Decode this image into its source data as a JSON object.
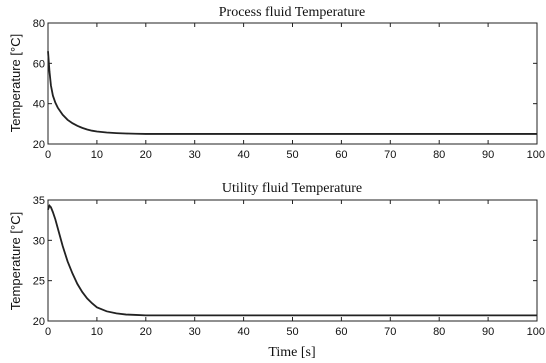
{
  "chart_data": [
    {
      "type": "line",
      "title": "Process fluid Temperature",
      "xlabel": "",
      "ylabel": "Temperature [°C]",
      "xlim": [
        0,
        100
      ],
      "ylim": [
        20,
        80
      ],
      "xticks": [
        "0",
        "10",
        "20",
        "30",
        "40",
        "50",
        "60",
        "70",
        "80",
        "90",
        "100"
      ],
      "yticks": [
        "20",
        "40",
        "60",
        "80"
      ],
      "grid": false,
      "series": [
        {
          "x": [
            0,
            0.3,
            0.6,
            1,
            1.5,
            2,
            3,
            4,
            5,
            6,
            7,
            8,
            9,
            10,
            12,
            14,
            16,
            18,
            20,
            30,
            40,
            50,
            60,
            70,
            80,
            90,
            100
          ],
          "values": [
            66,
            56,
            49,
            44,
            40.5,
            38,
            34.5,
            32,
            30.3,
            29,
            28,
            27.2,
            26.6,
            26.2,
            25.7,
            25.4,
            25.2,
            25.1,
            25,
            25,
            25,
            25,
            25,
            25,
            25,
            25,
            25
          ]
        }
      ]
    },
    {
      "type": "line",
      "title": "Utility fluid Temperature",
      "xlabel": "Time [s]",
      "ylabel": "Temperature [°C]",
      "xlim": [
        0,
        100
      ],
      "ylim": [
        20,
        35
      ],
      "xticks": [
        "0",
        "10",
        "20",
        "30",
        "40",
        "50",
        "60",
        "70",
        "80",
        "90",
        "100"
      ],
      "yticks": [
        "20",
        "25",
        "30",
        "35"
      ],
      "grid": false,
      "series": [
        {
          "x": [
            0,
            0.3,
            0.6,
            1,
            1.5,
            2,
            3,
            4,
            5,
            6,
            7,
            8,
            9,
            10,
            12,
            14,
            16,
            18,
            20,
            22,
            30,
            40,
            50,
            60,
            70,
            80,
            90,
            100
          ],
          "values": [
            33.8,
            34.3,
            34.1,
            33.5,
            32.6,
            31.5,
            29.3,
            27.4,
            25.9,
            24.6,
            23.6,
            22.8,
            22.2,
            21.7,
            21.2,
            20.95,
            20.8,
            20.75,
            20.7,
            20.7,
            20.7,
            20.7,
            20.7,
            20.7,
            20.7,
            20.7,
            20.7,
            20.7
          ]
        }
      ]
    }
  ]
}
